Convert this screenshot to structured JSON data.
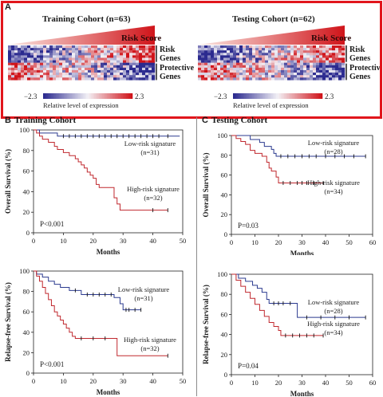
{
  "panel_a": {
    "label": "A",
    "training_title": "Training Cohort (n=63)",
    "testing_title": "Testing Cohort (n=62)",
    "risk_score_label": "Risk Score",
    "risk_genes_label": [
      "Risk",
      "Genes"
    ],
    "protective_genes_label": [
      "Protective",
      "Genes"
    ],
    "scale_min": "−2.3",
    "scale_max": "2.3",
    "scale_caption": "Relative level of expression",
    "colors": {
      "low": "#2b2a8f",
      "mid": "#f3f1f6",
      "high": "#d0141a",
      "border": "#e1161c"
    }
  },
  "panel_b": {
    "label": "B",
    "title": "Training Cohort"
  },
  "panel_c": {
    "label": "C",
    "title": "Testing Cohort"
  },
  "chart_data": [
    {
      "type": "line",
      "id": "b-top",
      "xlabel": "Months",
      "ylabel": "Overall Survival (%)",
      "xlim": [
        0,
        50
      ],
      "ylim": [
        0,
        100
      ],
      "xticks": [
        0,
        10,
        20,
        30,
        40,
        50
      ],
      "yticks": [
        0,
        20,
        40,
        60,
        80,
        100
      ],
      "p_value": "P<0.001",
      "series": [
        {
          "name": "Low-risk signature",
          "n": "(n=31)",
          "color": "#2b3a8f",
          "steps": [
            [
              0,
              100
            ],
            [
              2,
              97
            ],
            [
              8,
              94
            ],
            [
              49,
              94
            ]
          ],
          "censor": [
            [
              10,
              94
            ],
            [
              12,
              94
            ],
            [
              14,
              94
            ],
            [
              16,
              94
            ],
            [
              18,
              94
            ],
            [
              20,
              94
            ],
            [
              22,
              94
            ],
            [
              24,
              94
            ],
            [
              26,
              94
            ],
            [
              28,
              94
            ],
            [
              30,
              94
            ],
            [
              32,
              94
            ],
            [
              34,
              94
            ],
            [
              36,
              94
            ],
            [
              38,
              94
            ],
            [
              40,
              94
            ],
            [
              42,
              94
            ],
            [
              45,
              94
            ]
          ]
        },
        {
          "name": "High-risk signature",
          "n": "(n=32)",
          "color": "#c0282e",
          "steps": [
            [
              0,
              100
            ],
            [
              1,
              97
            ],
            [
              2,
              94
            ],
            [
              3,
              91
            ],
            [
              5,
              88
            ],
            [
              7,
              84
            ],
            [
              8,
              81
            ],
            [
              10,
              78
            ],
            [
              12,
              75
            ],
            [
              14,
              72
            ],
            [
              15,
              69
            ],
            [
              16,
              66
            ],
            [
              17,
              63
            ],
            [
              18,
              59
            ],
            [
              19,
              56
            ],
            [
              20,
              53
            ],
            [
              21,
              47
            ],
            [
              22,
              44
            ],
            [
              26,
              44
            ],
            [
              27,
              34
            ],
            [
              28,
              28
            ],
            [
              29,
              22
            ],
            [
              45,
              22
            ]
          ],
          "censor": [
            [
              40,
              22
            ],
            [
              45,
              22
            ]
          ]
        }
      ]
    },
    {
      "type": "line",
      "id": "b-bottom",
      "xlabel": "Months",
      "ylabel": "Relapse-free Survival (%)",
      "xlim": [
        0,
        50
      ],
      "ylim": [
        0,
        100
      ],
      "xticks": [
        0,
        10,
        20,
        30,
        40,
        50
      ],
      "yticks": [
        0,
        20,
        40,
        60,
        80,
        100
      ],
      "p_value": "P<0.001",
      "series": [
        {
          "name": "Low-risk signature",
          "n": "(n=31)",
          "color": "#2b3a8f",
          "steps": [
            [
              0,
              100
            ],
            [
              1,
              97
            ],
            [
              3,
              94
            ],
            [
              5,
              90
            ],
            [
              7,
              87
            ],
            [
              9,
              84
            ],
            [
              12,
              81
            ],
            [
              16,
              77
            ],
            [
              27,
              74
            ],
            [
              29,
              68
            ],
            [
              30,
              62
            ],
            [
              36,
              62
            ]
          ],
          "censor": [
            [
              14,
              81
            ],
            [
              18,
              77
            ],
            [
              20,
              77
            ],
            [
              22,
              77
            ],
            [
              24,
              77
            ],
            [
              26,
              77
            ],
            [
              31,
              62
            ],
            [
              32,
              62
            ],
            [
              34,
              62
            ],
            [
              36,
              62
            ]
          ]
        },
        {
          "name": "High-risk signature",
          "n": "(n=32)",
          "color": "#c0282e",
          "steps": [
            [
              0,
              100
            ],
            [
              1,
              95
            ],
            [
              2,
              90
            ],
            [
              3,
              84
            ],
            [
              4,
              78
            ],
            [
              5,
              72
            ],
            [
              6,
              66
            ],
            [
              7,
              60
            ],
            [
              8,
              56
            ],
            [
              9,
              52
            ],
            [
              10,
              48
            ],
            [
              11,
              44
            ],
            [
              12,
              40
            ],
            [
              13,
              36
            ],
            [
              14,
              34
            ],
            [
              18,
              34
            ],
            [
              28,
              17
            ],
            [
              45,
              17
            ]
          ],
          "censor": [
            [
              16,
              34
            ],
            [
              20,
              34
            ],
            [
              24,
              34
            ],
            [
              45,
              17
            ]
          ]
        }
      ]
    },
    {
      "type": "line",
      "id": "c-top",
      "xlabel": "Months",
      "ylabel": "Overall Survival (%)",
      "xlim": [
        0,
        60
      ],
      "ylim": [
        0,
        100
      ],
      "xticks": [
        0,
        10,
        20,
        30,
        40,
        50,
        60
      ],
      "yticks": [
        0,
        20,
        40,
        60,
        80,
        100
      ],
      "p_value": "P=0.03",
      "series": [
        {
          "name": "Low-risk signature",
          "n": "(n=28)",
          "color": "#2b3a8f",
          "steps": [
            [
              0,
              100
            ],
            [
              8,
              96
            ],
            [
              12,
              93
            ],
            [
              14,
              89
            ],
            [
              17,
              86
            ],
            [
              18,
              82
            ],
            [
              19,
              79
            ],
            [
              57,
              79
            ]
          ],
          "censor": [
            [
              21,
              79
            ],
            [
              24,
              79
            ],
            [
              27,
              79
            ],
            [
              30,
              79
            ],
            [
              33,
              79
            ],
            [
              36,
              79
            ],
            [
              40,
              79
            ],
            [
              44,
              79
            ],
            [
              48,
              79
            ],
            [
              52,
              79
            ],
            [
              57,
              79
            ]
          ]
        },
        {
          "name": "High-risk signature",
          "n": "(n=34)",
          "color": "#c0282e",
          "steps": [
            [
              0,
              100
            ],
            [
              2,
              97
            ],
            [
              4,
              94
            ],
            [
              6,
              91
            ],
            [
              8,
              85
            ],
            [
              10,
              82
            ],
            [
              13,
              79
            ],
            [
              15,
              73
            ],
            [
              16,
              67
            ],
            [
              17,
              64
            ],
            [
              19,
              58
            ],
            [
              20,
              52
            ],
            [
              39,
              52
            ]
          ],
          "censor": [
            [
              22,
              52
            ],
            [
              25,
              52
            ],
            [
              28,
              52
            ],
            [
              30,
              52
            ],
            [
              32,
              52
            ],
            [
              35,
              52
            ],
            [
              39,
              52
            ]
          ]
        }
      ]
    },
    {
      "type": "line",
      "id": "c-bottom",
      "xlabel": "Months",
      "ylabel": "Relapse-free Survival (%)",
      "xlim": [
        0,
        60
      ],
      "ylim": [
        0,
        100
      ],
      "xticks": [
        0,
        10,
        20,
        30,
        40,
        50,
        60
      ],
      "yticks": [
        0,
        20,
        40,
        60,
        80,
        100
      ],
      "p_value": "P=0.04",
      "series": [
        {
          "name": "Low-risk signature",
          "n": "(n=28)",
          "color": "#2b3a8f",
          "steps": [
            [
              0,
              100
            ],
            [
              3,
              96
            ],
            [
              6,
              93
            ],
            [
              9,
              89
            ],
            [
              11,
              86
            ],
            [
              13,
              82
            ],
            [
              15,
              75
            ],
            [
              16,
              71
            ],
            [
              27,
              71
            ],
            [
              28,
              57
            ],
            [
              57,
              57
            ]
          ],
          "censor": [
            [
              18,
              71
            ],
            [
              20,
              71
            ],
            [
              22,
              71
            ],
            [
              25,
              71
            ],
            [
              32,
              57
            ],
            [
              38,
              57
            ],
            [
              44,
              57
            ],
            [
              50,
              57
            ],
            [
              57,
              57
            ]
          ]
        },
        {
          "name": "High-risk signature",
          "n": "(n=34)",
          "color": "#c0282e",
          "steps": [
            [
              0,
              100
            ],
            [
              2,
              94
            ],
            [
              4,
              88
            ],
            [
              6,
              82
            ],
            [
              8,
              76
            ],
            [
              10,
              70
            ],
            [
              12,
              64
            ],
            [
              14,
              58
            ],
            [
              16,
              52
            ],
            [
              18,
              48
            ],
            [
              20,
              44
            ],
            [
              21,
              39
            ],
            [
              39,
              39
            ]
          ],
          "censor": [
            [
              23,
              39
            ],
            [
              26,
              39
            ],
            [
              29,
              39
            ],
            [
              32,
              39
            ],
            [
              35,
              39
            ],
            [
              39,
              39
            ]
          ]
        }
      ]
    }
  ]
}
